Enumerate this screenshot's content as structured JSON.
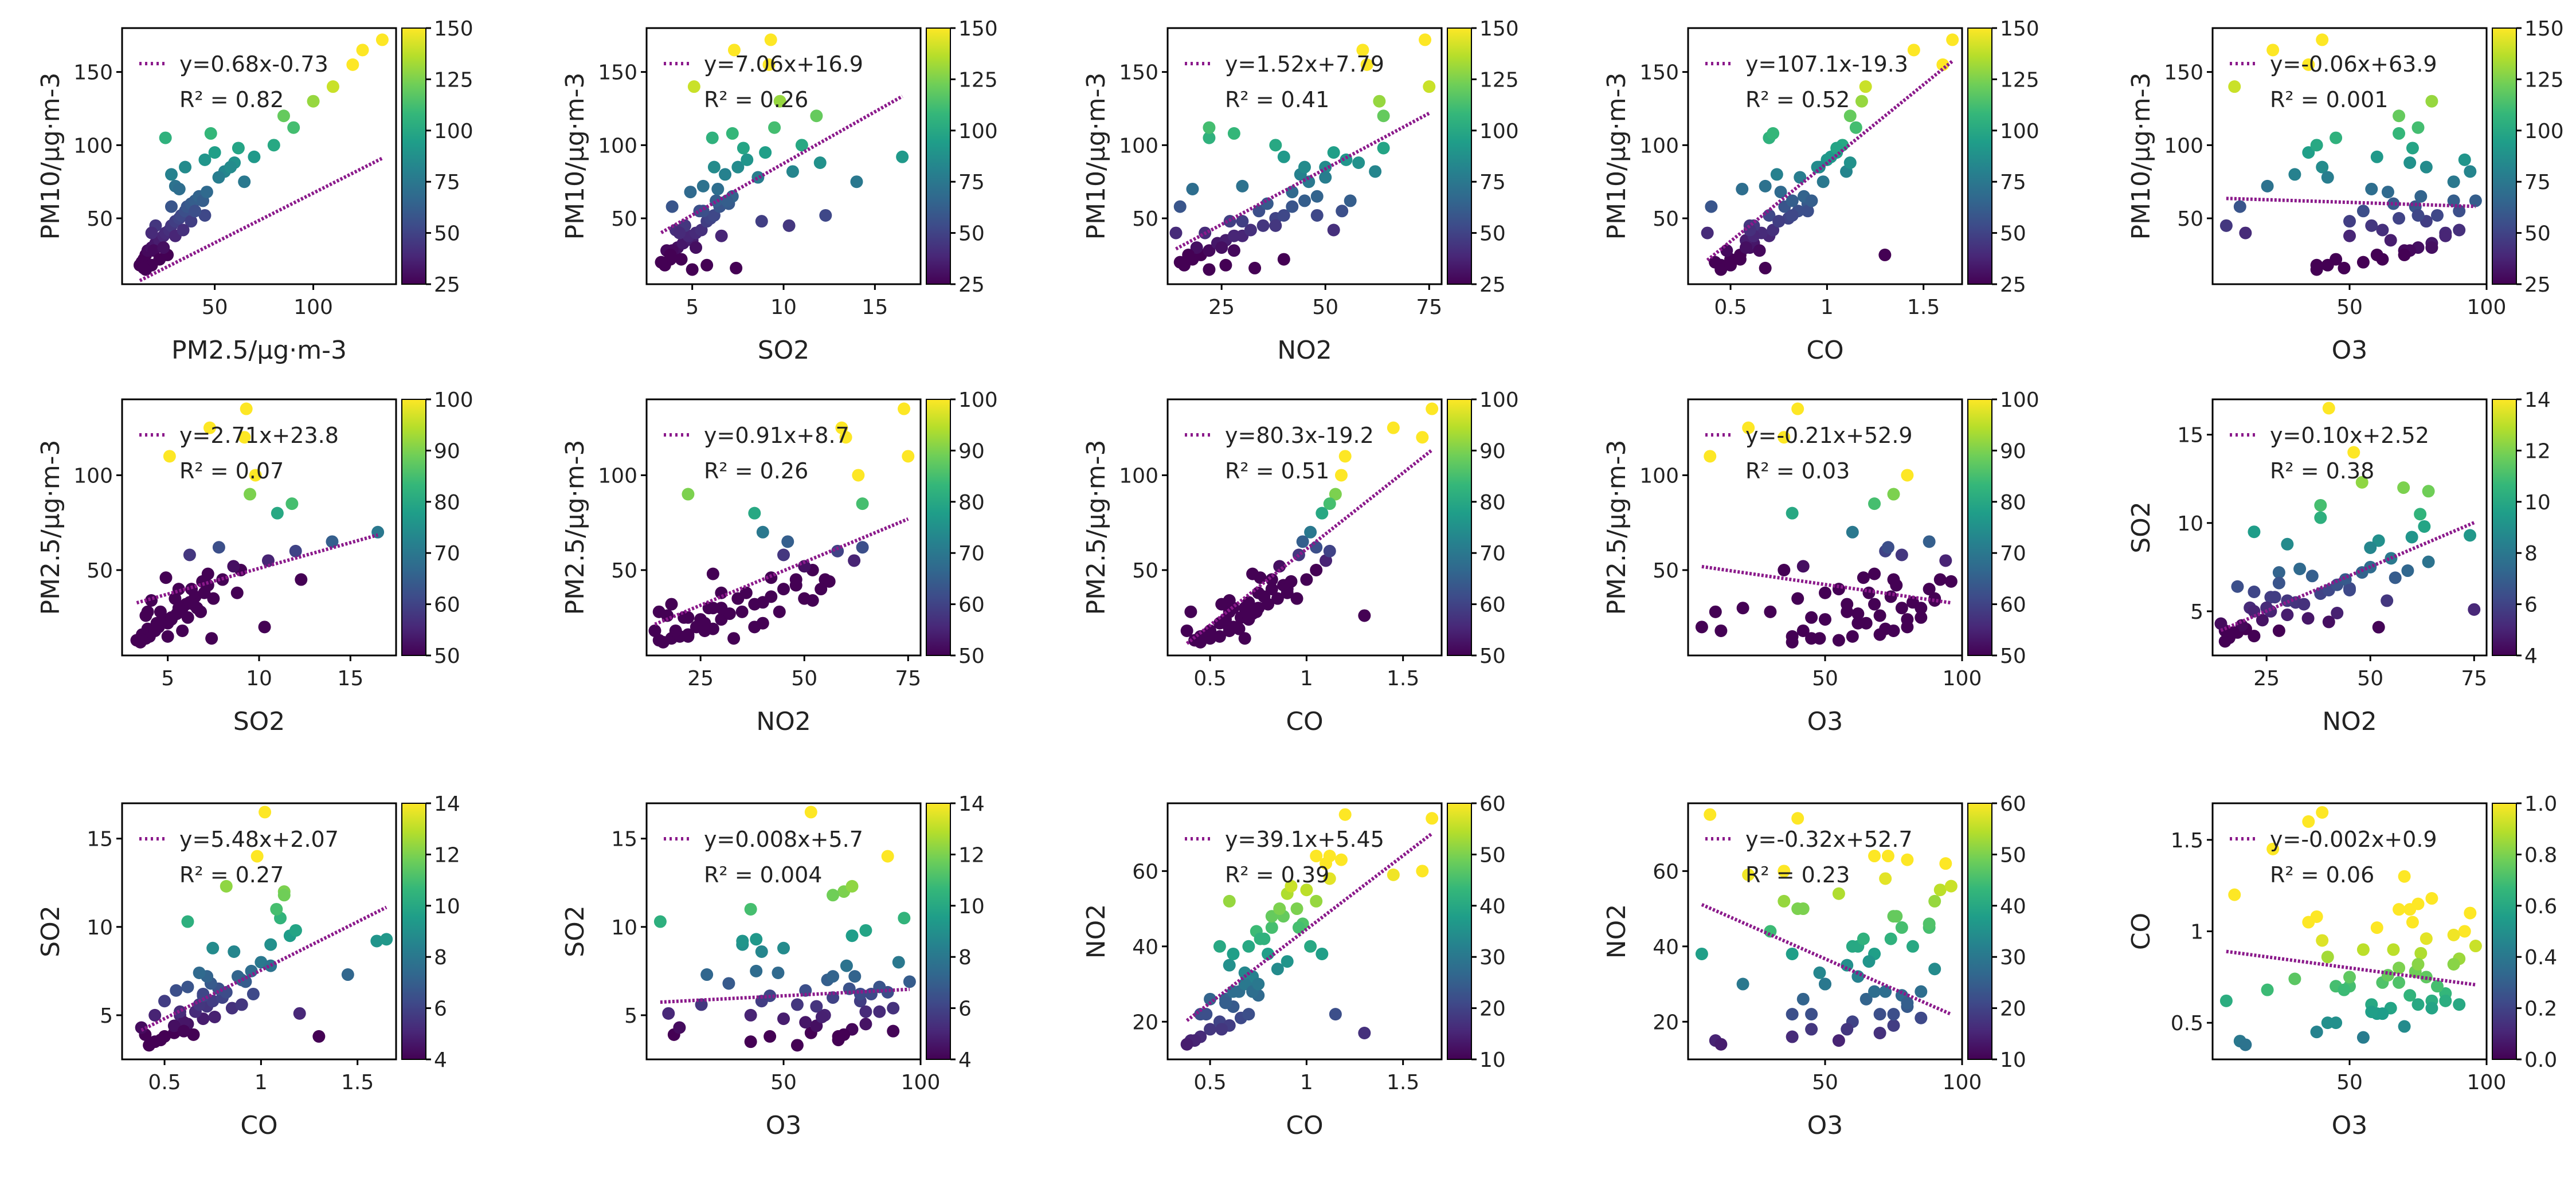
{
  "chart_data": [
    {
      "type": "scatter",
      "x_var": "pm25",
      "y_var": "pm10",
      "xlabel": "PM2.5/μg·m-3",
      "ylabel": "PM10/μg·m-3",
      "xlim": [
        3,
        142
      ],
      "ylim": [
        5,
        180
      ],
      "xticks": [
        50,
        100
      ],
      "yticks": [
        50,
        100,
        150
      ],
      "fit": {
        "slope": 0.68,
        "intercept": -0.73
      },
      "fit_label": "y=0.68x-0.73",
      "r2_label": "R² = 0.82",
      "colorbar": {
        "range": [
          25,
          150
        ],
        "ticks": [
          25,
          50,
          75,
          100,
          125,
          150
        ]
      }
    },
    {
      "type": "scatter",
      "x_var": "so2",
      "y_var": "pm10",
      "xlabel": "SO2",
      "ylabel": "PM10/μg·m-3",
      "xlim": [
        2.5,
        17.5
      ],
      "ylim": [
        5,
        180
      ],
      "xticks": [
        5,
        10,
        15
      ],
      "yticks": [
        50,
        100,
        150
      ],
      "fit": {
        "slope": 7.06,
        "intercept": 16.9
      },
      "fit_label": "y=7.06x+16.9",
      "r2_label": "R² = 0.26",
      "colorbar": {
        "range": [
          25,
          150
        ],
        "ticks": [
          25,
          50,
          75,
          100,
          125,
          150
        ]
      }
    },
    {
      "type": "scatter",
      "x_var": "no2",
      "y_var": "pm10",
      "xlabel": "NO2",
      "ylabel": "PM10/μg·m-3",
      "xlim": [
        12,
        78
      ],
      "ylim": [
        5,
        180
      ],
      "xticks": [
        25,
        50,
        75
      ],
      "yticks": [
        50,
        100,
        150
      ],
      "fit": {
        "slope": 1.52,
        "intercept": 7.79
      },
      "fit_label": "y=1.52x+7.79",
      "r2_label": "R² = 0.41",
      "colorbar": {
        "range": [
          25,
          150
        ],
        "ticks": [
          25,
          50,
          75,
          100,
          125,
          150
        ]
      }
    },
    {
      "type": "scatter",
      "x_var": "co",
      "y_var": "pm10",
      "xlabel": "CO",
      "ylabel": "PM10/μg·m-3",
      "xlim": [
        0.28,
        1.7
      ],
      "ylim": [
        5,
        180
      ],
      "xticks": [
        0.5,
        1.0,
        1.5
      ],
      "yticks": [
        50,
        100,
        150
      ],
      "fit": {
        "slope": 107.1,
        "intercept": -19.3
      },
      "fit_label": "y=107.1x-19.3",
      "r2_label": "R² = 0.52",
      "colorbar": {
        "range": [
          25,
          150
        ],
        "ticks": [
          25,
          50,
          75,
          100,
          125,
          150
        ]
      }
    },
    {
      "type": "scatter",
      "x_var": "o3",
      "y_var": "pm10",
      "xlabel": "O3",
      "ylabel": "PM10/μg·m-3",
      "xlim": [
        0,
        100
      ],
      "ylim": [
        5,
        180
      ],
      "xticks": [
        50,
        100
      ],
      "yticks": [
        50,
        100,
        150
      ],
      "fit": {
        "slope": -0.06,
        "intercept": 63.9
      },
      "fit_label": "y=-0.06x+63.9",
      "r2_label": "R² = 0.001",
      "colorbar": {
        "range": [
          25,
          150
        ],
        "ticks": [
          25,
          50,
          75,
          100,
          125,
          150
        ]
      }
    },
    {
      "type": "scatter",
      "x_var": "so2",
      "y_var": "pm25",
      "xlabel": "SO2",
      "ylabel": "PM2.5/μg·m-3",
      "xlim": [
        2.5,
        17.5
      ],
      "ylim": [
        5,
        140
      ],
      "xticks": [
        5,
        10,
        15
      ],
      "yticks": [
        50,
        100
      ],
      "fit": {
        "slope": 2.71,
        "intercept": 23.8
      },
      "fit_label": "y=2.71x+23.8",
      "r2_label": "R² = 0.07",
      "colorbar": {
        "range": [
          50,
          100
        ],
        "ticks": [
          50,
          60,
          70,
          80,
          90,
          100
        ]
      }
    },
    {
      "type": "scatter",
      "x_var": "no2",
      "y_var": "pm25",
      "xlabel": "NO2",
      "ylabel": "PM2.5/μg·m-3",
      "xlim": [
        12,
        78
      ],
      "ylim": [
        5,
        140
      ],
      "xticks": [
        25,
        50,
        75
      ],
      "yticks": [
        50,
        100
      ],
      "fit": {
        "slope": 0.91,
        "intercept": 8.7
      },
      "fit_label": "y=0.91x+8.7",
      "r2_label": "R² = 0.26",
      "colorbar": {
        "range": [
          50,
          100
        ],
        "ticks": [
          50,
          60,
          70,
          80,
          90,
          100
        ]
      }
    },
    {
      "type": "scatter",
      "x_var": "co",
      "y_var": "pm25",
      "xlabel": "CO",
      "ylabel": "PM2.5/μg·m-3",
      "xlim": [
        0.28,
        1.7
      ],
      "ylim": [
        5,
        140
      ],
      "xticks": [
        0.5,
        1.0,
        1.5
      ],
      "yticks": [
        50,
        100
      ],
      "fit": {
        "slope": 80.3,
        "intercept": -19.2
      },
      "fit_label": "y=80.3x-19.2",
      "r2_label": "R² = 0.51",
      "colorbar": {
        "range": [
          50,
          100
        ],
        "ticks": [
          50,
          60,
          70,
          80,
          90,
          100
        ]
      }
    },
    {
      "type": "scatter",
      "x_var": "o3",
      "y_var": "pm25",
      "xlabel": "O3",
      "ylabel": "PM2.5/μg·m-3",
      "xlim": [
        0,
        100
      ],
      "ylim": [
        5,
        140
      ],
      "xticks": [
        50,
        100
      ],
      "yticks": [
        50,
        100
      ],
      "fit": {
        "slope": -0.21,
        "intercept": 52.9
      },
      "fit_label": "y=-0.21x+52.9",
      "r2_label": "R² = 0.03",
      "colorbar": {
        "range": [
          50,
          100
        ],
        "ticks": [
          50,
          60,
          70,
          80,
          90,
          100
        ]
      }
    },
    {
      "type": "scatter",
      "x_var": "no2",
      "y_var": "so2",
      "xlabel": "NO2",
      "ylabel": "SO2",
      "xlim": [
        12,
        78
      ],
      "ylim": [
        2.5,
        17
      ],
      "xticks": [
        25,
        50,
        75
      ],
      "yticks": [
        5,
        10,
        15
      ],
      "fit": {
        "slope": 0.1,
        "intercept": 2.52
      },
      "fit_label": "y=0.10x+2.52",
      "r2_label": "R² = 0.38",
      "colorbar": {
        "range": [
          4,
          14
        ],
        "ticks": [
          4,
          6,
          8,
          10,
          12,
          14
        ]
      }
    },
    {
      "type": "scatter",
      "x_var": "co",
      "y_var": "so2",
      "xlabel": "CO",
      "ylabel": "SO2",
      "xlim": [
        0.28,
        1.7
      ],
      "ylim": [
        2.5,
        17
      ],
      "xticks": [
        0.5,
        1.0,
        1.5
      ],
      "yticks": [
        5,
        10,
        15
      ],
      "fit": {
        "slope": 5.48,
        "intercept": 2.07
      },
      "fit_label": "y=5.48x+2.07",
      "r2_label": "R² = 0.27",
      "colorbar": {
        "range": [
          4,
          14
        ],
        "ticks": [
          4,
          6,
          8,
          10,
          12,
          14
        ]
      }
    },
    {
      "type": "scatter",
      "x_var": "o3",
      "y_var": "so2",
      "xlabel": "O3",
      "ylabel": "SO2",
      "xlim": [
        0,
        100
      ],
      "ylim": [
        2.5,
        17
      ],
      "xticks": [
        50,
        100
      ],
      "yticks": [
        5,
        10,
        15
      ],
      "fit": {
        "slope": 0.008,
        "intercept": 5.7
      },
      "fit_label": "y=0.008x+5.7",
      "r2_label": "R² = 0.004",
      "colorbar": {
        "range": [
          4,
          14
        ],
        "ticks": [
          4,
          6,
          8,
          10,
          12,
          14
        ]
      }
    },
    {
      "type": "scatter",
      "x_var": "co",
      "y_var": "no2",
      "xlabel": "CO",
      "ylabel": "NO2",
      "xlim": [
        0.28,
        1.7
      ],
      "ylim": [
        10,
        78
      ],
      "xticks": [
        0.5,
        1.0,
        1.5
      ],
      "yticks": [
        20,
        40,
        60
      ],
      "fit": {
        "slope": 39.1,
        "intercept": 5.45
      },
      "fit_label": "y=39.1x+5.45",
      "r2_label": "R² = 0.39",
      "colorbar": {
        "range": [
          10,
          60
        ],
        "ticks": [
          10,
          20,
          30,
          40,
          50,
          60
        ]
      }
    },
    {
      "type": "scatter",
      "x_var": "o3",
      "y_var": "no2",
      "xlabel": "O3",
      "ylabel": "NO2",
      "xlim": [
        0,
        100
      ],
      "ylim": [
        10,
        78
      ],
      "xticks": [
        50,
        100
      ],
      "yticks": [
        20,
        40,
        60
      ],
      "fit": {
        "slope": -0.32,
        "intercept": 52.7
      },
      "fit_label": "y=-0.32x+52.7",
      "r2_label": "R² = 0.23",
      "colorbar": {
        "range": [
          10,
          60
        ],
        "ticks": [
          10,
          20,
          30,
          40,
          50,
          60
        ]
      }
    },
    {
      "type": "scatter",
      "x_var": "o3",
      "y_var": "co",
      "xlabel": "O3",
      "ylabel": "CO",
      "xlim": [
        0,
        100
      ],
      "ylim": [
        0.3,
        1.7
      ],
      "xticks": [
        50,
        100
      ],
      "yticks": [
        0.5,
        1.0,
        1.5
      ],
      "fit": {
        "slope": -0.002,
        "intercept": 0.9
      },
      "fit_label": "y=-0.002x+0.9",
      "r2_label": "R² = 0.06",
      "colorbar": {
        "range": [
          0,
          1
        ],
        "ticks": [
          0.0,
          0.2,
          0.4,
          0.6,
          0.8,
          1.0
        ]
      }
    }
  ],
  "records": {
    "fields": [
      "pm25",
      "pm10",
      "so2",
      "no2",
      "co",
      "o3"
    ],
    "rows": [
      [
        12,
        18,
        3.5,
        16,
        0.45,
        38
      ],
      [
        14,
        22,
        3.8,
        18,
        0.5,
        45
      ],
      [
        15,
        25,
        4.0,
        20,
        0.55,
        60
      ],
      [
        16,
        28,
        3.6,
        22,
        0.48,
        70
      ],
      [
        18,
        30,
        4.2,
        19,
        0.6,
        75
      ],
      [
        13,
        20,
        3.3,
        15,
        0.42,
        55
      ],
      [
        20,
        33,
        4.5,
        24,
        0.62,
        80
      ],
      [
        22,
        35,
        5.0,
        26,
        0.58,
        65
      ],
      [
        19,
        28,
        3.9,
        28,
        0.65,
        72
      ],
      [
        24,
        38,
        4.8,
        30,
        0.7,
        50
      ],
      [
        25,
        40,
        5.2,
        21,
        0.66,
        85
      ],
      [
        27,
        42,
        5.5,
        32,
        0.72,
        62
      ],
      [
        28,
        45,
        4.6,
        35,
        0.6,
        58
      ],
      [
        30,
        48,
        5.8,
        27,
        0.75,
        78
      ],
      [
        32,
        50,
        6.0,
        38,
        0.8,
        68
      ],
      [
        33,
        52,
        6.2,
        40,
        0.7,
        82
      ],
      [
        35,
        55,
        5.4,
        34,
        0.85,
        90
      ],
      [
        36,
        58,
        6.5,
        42,
        0.78,
        74
      ],
      [
        38,
        60,
        7.0,
        36,
        0.9,
        66
      ],
      [
        40,
        62,
        6.3,
        45,
        0.82,
        88
      ],
      [
        42,
        65,
        7.2,
        48,
        0.88,
        76
      ],
      [
        30,
        72,
        5.6,
        30,
        0.68,
        20
      ],
      [
        28,
        80,
        6.8,
        44,
        0.74,
        30
      ],
      [
        35,
        85,
        7.5,
        50,
        0.95,
        40
      ],
      [
        45,
        90,
        8.0,
        55,
        1.0,
        92
      ],
      [
        50,
        95,
        9.0,
        52,
        1.05,
        35
      ],
      [
        25,
        105,
        6.1,
        22,
        0.7,
        45
      ],
      [
        48,
        108,
        7.2,
        28,
        0.72,
        68
      ],
      [
        55,
        82,
        10.5,
        62,
        1.1,
        94
      ],
      [
        60,
        88,
        12.0,
        58,
        1.12,
        72
      ],
      [
        65,
        75,
        14.0,
        46,
        0.98,
        88
      ],
      [
        70,
        92,
        16.5,
        40,
        1.02,
        60
      ],
      [
        80,
        100,
        11.0,
        38,
        1.08,
        38
      ],
      [
        90,
        112,
        9.5,
        22,
        1.15,
        75
      ],
      [
        100,
        130,
        9.8,
        63,
        1.18,
        80
      ],
      [
        110,
        140,
        5.1,
        75,
        1.2,
        8
      ],
      [
        120,
        155,
        9.2,
        60,
        1.6,
        35
      ],
      [
        125,
        165,
        7.3,
        59,
        1.45,
        22
      ],
      [
        135,
        172,
        9.3,
        74,
        1.65,
        40
      ],
      [
        85,
        120,
        11.8,
        64,
        1.12,
        68
      ],
      [
        45,
        52,
        12.3,
        48,
        0.82,
        75
      ],
      [
        38,
        48,
        8.8,
        30,
        0.75,
        50
      ],
      [
        20,
        45,
        10.3,
        38,
        0.62,
        5
      ],
      [
        15,
        15,
        5.0,
        22,
        0.45,
        38
      ],
      [
        18,
        18,
        5.8,
        26,
        0.5,
        42
      ],
      [
        14,
        16,
        7.4,
        33,
        0.68,
        48
      ],
      [
        22,
        22,
        4.4,
        40,
        0.55,
        62
      ],
      [
        26,
        25,
        3.8,
        17,
        1.3,
        70
      ],
      [
        24,
        30,
        5.2,
        25,
        0.58,
        80
      ],
      [
        30,
        38,
        6.6,
        28,
        0.62,
        85
      ],
      [
        34,
        42,
        4.1,
        52,
        0.6,
        90
      ],
      [
        40,
        55,
        5.6,
        54,
        0.9,
        55
      ],
      [
        44,
        62,
        6.9,
        56,
        0.92,
        96
      ],
      [
        46,
        68,
        4.9,
        42,
        0.76,
        64
      ],
      [
        32,
        70,
        6.4,
        18,
        0.56,
        58
      ],
      [
        52,
        78,
        8.6,
        50,
        0.86,
        42
      ],
      [
        28,
        58,
        3.9,
        15,
        0.4,
        10
      ],
      [
        18,
        40,
        4.3,
        14,
        0.38,
        12
      ],
      [
        58,
        85,
        6.2,
        45,
        0.96,
        78
      ],
      [
        62,
        98,
        7.8,
        64,
        1.05,
        73
      ]
    ]
  },
  "colors": {
    "fit_line": "#8b1a8b",
    "frame": "#000000"
  }
}
